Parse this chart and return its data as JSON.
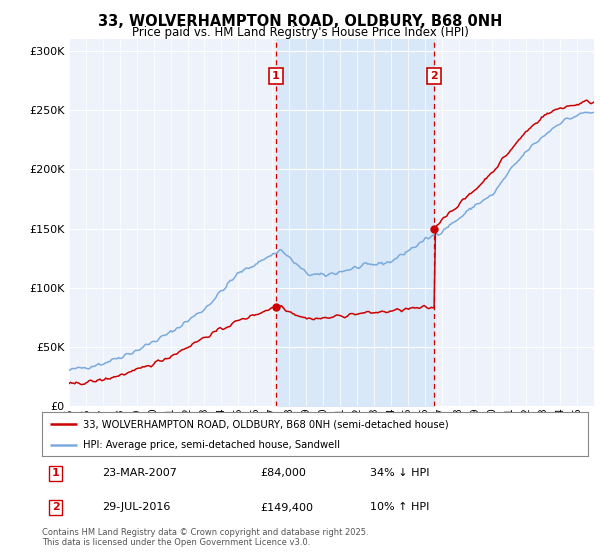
{
  "title_line1": "33, WOLVERHAMPTON ROAD, OLDBURY, B68 0NH",
  "title_line2": "Price paid vs. HM Land Registry's House Price Index (HPI)",
  "bg_color": "#ffffff",
  "plot_bg_color": "#eef3fb",
  "grid_color": "#d0d8e8",
  "hpi_color": "#7aaadd",
  "sale_color": "#cc0000",
  "shade_color": "#d8e8f8",
  "sale1_date": "23-MAR-2007",
  "sale1_price": 84000,
  "sale1_hpi_diff": "34% ↓ HPI",
  "sale2_date": "29-JUL-2016",
  "sale2_price": 149400,
  "sale2_hpi_diff": "10% ↑ HPI",
  "legend_line1": "33, WOLVERHAMPTON ROAD, OLDBURY, B68 0NH (semi-detached house)",
  "legend_line2": "HPI: Average price, semi-detached house, Sandwell",
  "footer": "Contains HM Land Registry data © Crown copyright and database right 2025.\nThis data is licensed under the Open Government Licence v3.0.",
  "ylim_max": 310000,
  "yticks": [
    0,
    50000,
    100000,
    150000,
    200000,
    250000,
    300000
  ]
}
